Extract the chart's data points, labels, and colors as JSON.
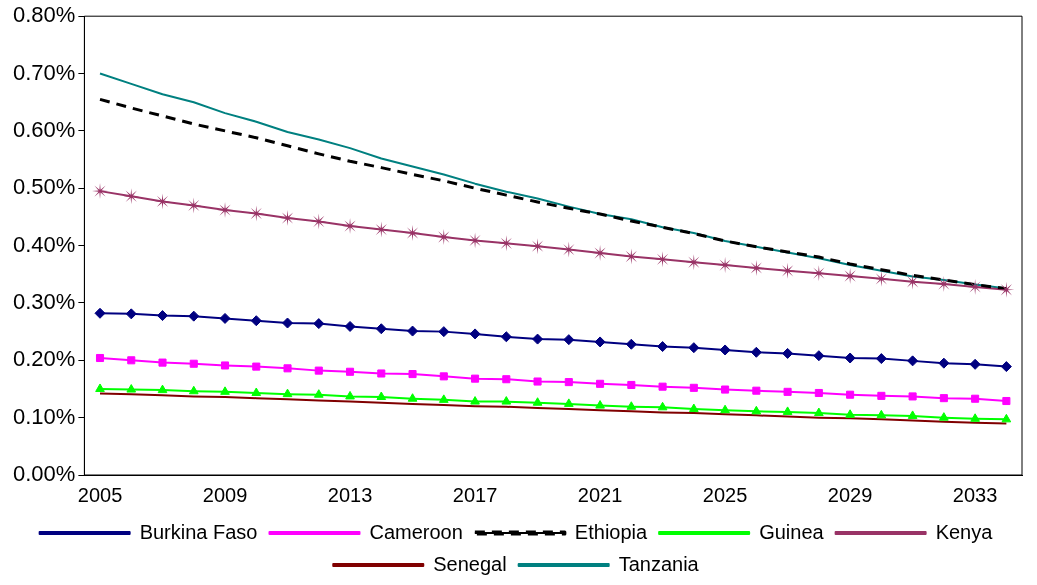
{
  "chart_data": {
    "type": "line",
    "categories": [
      "2005",
      null,
      null,
      null,
      "2009",
      null,
      null,
      null,
      "2013",
      null,
      null,
      null,
      "2017",
      null,
      null,
      null,
      "2021",
      null,
      null,
      null,
      "2025",
      null,
      null,
      null,
      "2029",
      null,
      null,
      null,
      "2033",
      null
    ],
    "ylim": [
      0,
      0.8
    ],
    "yticks": [
      {
        "value": 0,
        "label": "0.00%"
      },
      {
        "value": 0.1,
        "label": "0.10%"
      },
      {
        "value": 0.2,
        "label": "0.20%"
      },
      {
        "value": 0.3,
        "label": "0.30%"
      },
      {
        "value": 0.4,
        "label": "0.40%"
      },
      {
        "value": 0.5,
        "label": "0.50%"
      },
      {
        "value": 0.6,
        "label": "0.60%"
      },
      {
        "value": 0.7,
        "label": "0.70%"
      },
      {
        "value": 0.8,
        "label": "0.80%"
      }
    ],
    "grid": false,
    "legend": "bottom",
    "series": [
      {
        "name": "Burkina Faso",
        "color": "#000080",
        "marker": "diamond",
        "values": [
          0.282,
          0.281,
          0.278,
          0.277,
          0.273,
          0.269,
          0.265,
          0.264,
          0.259,
          0.255,
          0.251,
          0.25,
          0.246,
          0.241,
          0.237,
          0.236,
          0.232,
          0.228,
          0.224,
          0.222,
          0.218,
          0.214,
          0.212,
          0.208,
          0.204,
          0.203,
          0.199,
          0.195,
          0.193,
          0.189
        ]
      },
      {
        "name": "Cameroon",
        "color": "#ff00ff",
        "marker": "square",
        "values": [
          0.204,
          0.2,
          0.196,
          0.194,
          0.191,
          0.189,
          0.186,
          0.182,
          0.18,
          0.177,
          0.176,
          0.172,
          0.168,
          0.167,
          0.163,
          0.162,
          0.159,
          0.157,
          0.154,
          0.152,
          0.149,
          0.147,
          0.145,
          0.143,
          0.14,
          0.138,
          0.137,
          0.134,
          0.133,
          0.129
        ]
      },
      {
        "name": "Ethiopia",
        "color": "#000000",
        "marker": "none",
        "line_style": "dashed",
        "values": [
          0.655,
          0.64,
          0.626,
          0.612,
          0.6,
          0.588,
          0.574,
          0.56,
          0.547,
          0.536,
          0.524,
          0.513,
          0.5,
          0.488,
          0.476,
          0.465,
          0.455,
          0.443,
          0.432,
          0.421,
          0.408,
          0.398,
          0.389,
          0.38,
          0.368,
          0.358,
          0.348,
          0.34,
          0.332,
          0.325
        ]
      },
      {
        "name": "Guinea",
        "color": "#00ff00",
        "marker": "triangle",
        "values": [
          0.15,
          0.149,
          0.148,
          0.146,
          0.145,
          0.143,
          0.141,
          0.14,
          0.137,
          0.136,
          0.133,
          0.131,
          0.128,
          0.128,
          0.126,
          0.124,
          0.121,
          0.119,
          0.118,
          0.115,
          0.113,
          0.111,
          0.11,
          0.108,
          0.105,
          0.104,
          0.103,
          0.1,
          0.098,
          0.097
        ]
      },
      {
        "name": "Kenya",
        "color": "#993366",
        "marker": "star",
        "values": [
          0.495,
          0.486,
          0.477,
          0.47,
          0.462,
          0.456,
          0.448,
          0.442,
          0.434,
          0.428,
          0.422,
          0.415,
          0.409,
          0.404,
          0.399,
          0.393,
          0.387,
          0.381,
          0.376,
          0.371,
          0.366,
          0.361,
          0.356,
          0.352,
          0.347,
          0.342,
          0.337,
          0.333,
          0.328,
          0.323
        ]
      },
      {
        "name": "Senegal",
        "color": "#800000",
        "marker": "none",
        "values": [
          0.142,
          0.141,
          0.139,
          0.137,
          0.136,
          0.134,
          0.132,
          0.13,
          0.128,
          0.126,
          0.124,
          0.122,
          0.12,
          0.119,
          0.117,
          0.115,
          0.113,
          0.111,
          0.109,
          0.108,
          0.106,
          0.104,
          0.102,
          0.1,
          0.099,
          0.097,
          0.095,
          0.093,
          0.091,
          0.09
        ]
      },
      {
        "name": "Tanzania",
        "color": "#008080",
        "marker": "none",
        "values": [
          0.7,
          0.682,
          0.664,
          0.65,
          0.631,
          0.616,
          0.598,
          0.585,
          0.57,
          0.552,
          0.538,
          0.524,
          0.508,
          0.494,
          0.482,
          0.468,
          0.455,
          0.446,
          0.432,
          0.422,
          0.408,
          0.398,
          0.388,
          0.378,
          0.366,
          0.356,
          0.346,
          0.34,
          0.332,
          0.325
        ]
      }
    ]
  }
}
